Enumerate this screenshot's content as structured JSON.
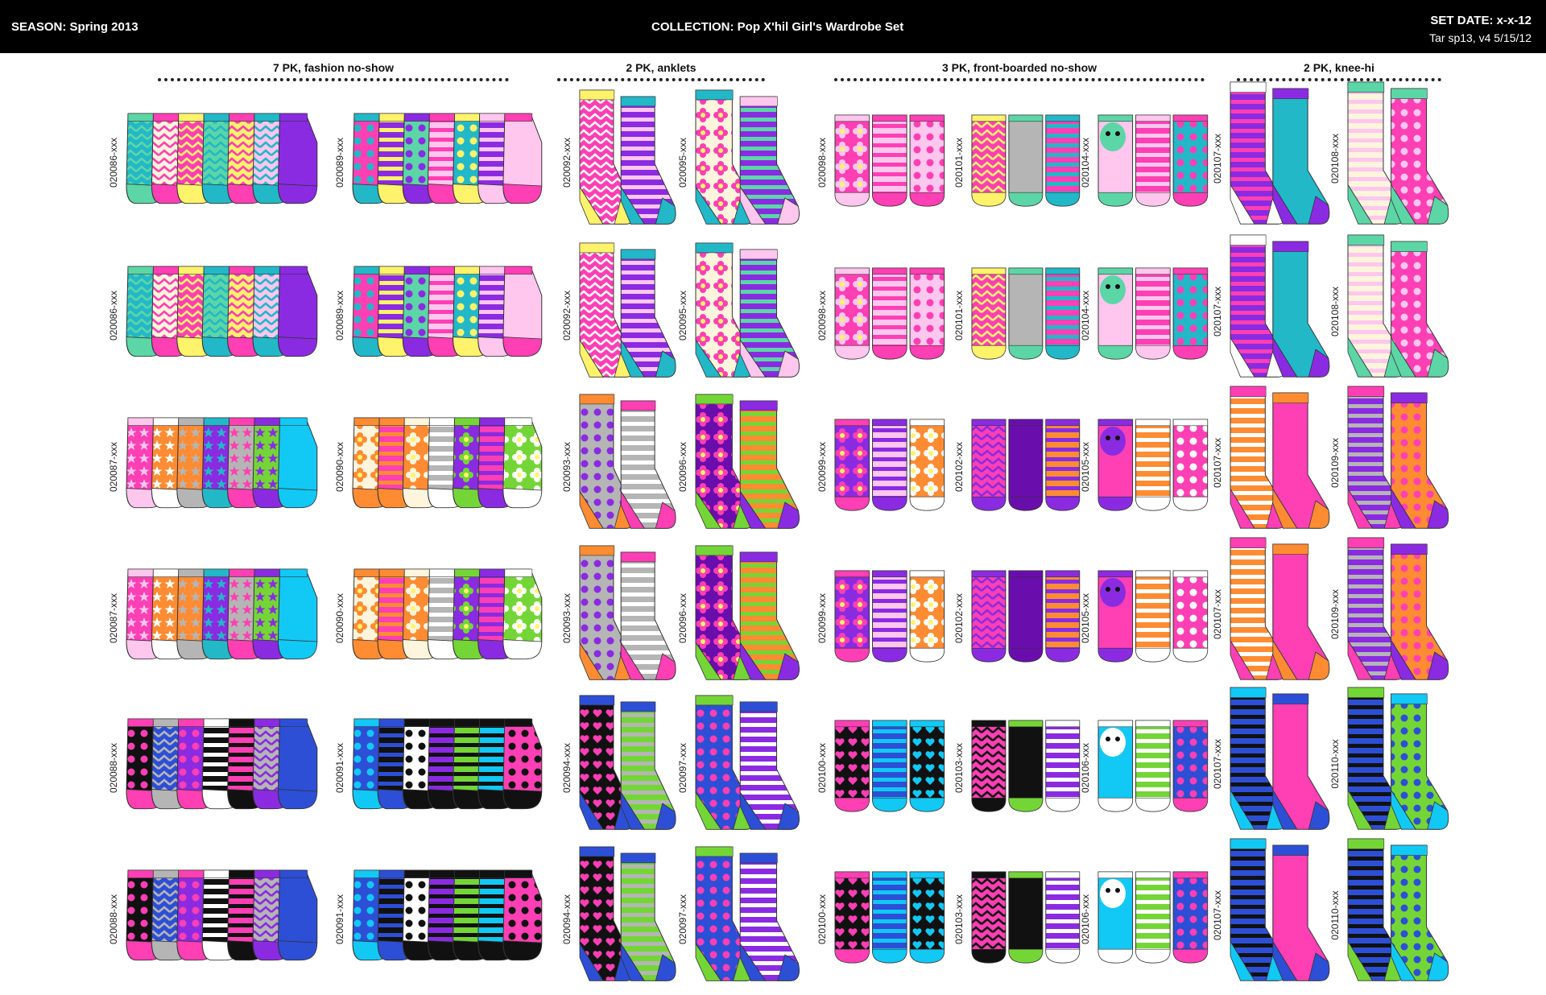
{
  "header": {
    "season": "SEASON: Spring 2013",
    "collection": "COLLECTION:  Pop  X'hil Girl's Wardrobe Set",
    "set_date": "SET DATE:  x-x-12",
    "revision": "Tar sp13, v4   5/15/12"
  },
  "sections": [
    {
      "label": "7 PK, fashion no-show"
    },
    {
      "label": "2 PK, anklets"
    },
    {
      "label": "3 PK, front-boarded no-show"
    },
    {
      "label": "2 PK, knee-hi"
    }
  ],
  "colors": {
    "hot_pink": "#ff3fb4",
    "light_pink": "#ffc6ee",
    "purple": "#8a2be2",
    "deep_purple": "#6a0dad",
    "teal": "#22b8c8",
    "mint": "#5cd6a6",
    "yellow": "#fff36b",
    "orange": "#ff8c32",
    "lime": "#74d636",
    "grey": "#b5b5b5",
    "black": "#111111",
    "royal_blue": "#2d4fd6",
    "cyan": "#12c8f5",
    "cream": "#fff5dc"
  },
  "rows": [
    [
      "020086-xxx",
      "020089-xxx",
      "020092-xxx",
      "020095-xxx",
      "020098-xxx",
      "020101-xxx",
      "020104-xxx",
      "020107-xxx",
      "020108-xxx"
    ],
    [
      "020086-xxx",
      "020089-xxx",
      "020092-xxx",
      "020095-xxx",
      "020098-xxx",
      "020101-xxx",
      "020104-xxx",
      "020107-xxx",
      "020108-xxx"
    ],
    [
      "020087-xxx",
      "020090-xxx",
      "020093-xxx",
      "020096-xxx",
      "020099-xxx",
      "020102-xxx",
      "020105-xxx",
      "020107-xxx",
      "020109-xxx"
    ],
    [
      "020087-xxx",
      "020090-xxx",
      "020093-xxx",
      "020096-xxx",
      "020099-xxx",
      "020102-xxx",
      "020105-xxx",
      "020107-xxx",
      "020109-xxx"
    ],
    [
      "020088-xxx",
      "020091-xxx",
      "020094-xxx",
      "020097-xxx",
      "020100-xxx",
      "020103-xxx",
      "020106-xxx",
      "020107-xxx",
      "020110-xxx"
    ],
    [
      "020088-xxx",
      "020091-xxx",
      "020094-xxx",
      "020097-xxx",
      "020100-xxx",
      "020103-xxx",
      "020106-xxx",
      "020107-xxx",
      "020110-xxx"
    ]
  ],
  "palettes": [
    {
      "type": "noshow",
      "socks": [
        [
          "#22b8c8",
          "#5cd6a6",
          "chev"
        ],
        [
          "#fff5dc",
          "#ff3fb4",
          "chev"
        ],
        [
          "#ff3fb4",
          "#fff36b",
          "chev"
        ],
        [
          "#5cd6a6",
          "#22b8c8",
          "chev"
        ],
        [
          "#fff36b",
          "#ff3fb4",
          "chev"
        ],
        [
          "#ffc6ee",
          "#22b8c8",
          "chev"
        ],
        [
          "#8a2be2",
          "#8a2be2",
          "plain"
        ]
      ]
    },
    {
      "type": "noshow",
      "socks": [
        [
          "#ff3fb4",
          "#22b8c8",
          "dots"
        ],
        [
          "#8a2be2",
          "#fff36b",
          "stripes"
        ],
        [
          "#5cd6a6",
          "#8a2be2",
          "dots"
        ],
        [
          "#ffc6ee",
          "#ff3fb4",
          "stripes"
        ],
        [
          "#22b8c8",
          "#fff36b",
          "dots"
        ],
        [
          "#8a2be2",
          "#ffc6ee",
          "stripes"
        ],
        [
          "#ffc6ee",
          "#ff3fb4",
          "plain"
        ]
      ]
    },
    {
      "type": "anklet",
      "socks": [
        [
          "#ff3fb4",
          "#ffffff",
          "chev",
          "#fff36b"
        ],
        [
          "#8a2be2",
          "#ffc6ee",
          "stripes",
          "#22b8c8"
        ]
      ]
    },
    {
      "type": "anklet",
      "socks": [
        [
          "#fff5dc",
          "#ff3fb4",
          "flowers",
          "#22b8c8"
        ],
        [
          "#8a2be2",
          "#5cd6a6",
          "stripes",
          "#ffc6ee"
        ]
      ]
    },
    {
      "type": "boarded",
      "socks": [
        [
          "#ff3fb4",
          "#ffc6ee",
          "flowers"
        ],
        [
          "#ffc6ee",
          "#ff3fb4",
          "stripes"
        ],
        [
          "#ffc6ee",
          "#ff3fb4",
          "dots"
        ]
      ]
    },
    {
      "type": "boarded",
      "socks": [
        [
          "#ff3fb4",
          "#fff36b",
          "chev"
        ],
        [
          "#b5b5b5",
          "#5cd6a6",
          "plain"
        ],
        [
          "#ff3fb4",
          "#22b8c8",
          "stripes"
        ]
      ]
    },
    {
      "type": "boarded",
      "socks": [
        [
          "#ffc6ee",
          "#5cd6a6",
          "face"
        ],
        [
          "#ff3fb4",
          "#ffc6ee",
          "stripes"
        ],
        [
          "#22b8c8",
          "#ff3fb4",
          "dots"
        ]
      ]
    },
    {
      "type": "knee",
      "socks": [
        [
          "#8a2be2",
          "#ff3fb4",
          "stripes",
          "#ffffff"
        ],
        [
          "#22b8c8",
          "#22b8c8",
          "plain",
          "#8a2be2"
        ]
      ]
    },
    {
      "type": "knee",
      "socks": [
        [
          "#fff5dc",
          "#ffc6ee",
          "stripes",
          "#5cd6a6"
        ],
        [
          "#ff3fb4",
          "#ffc6ee",
          "dots",
          "#5cd6a6"
        ]
      ]
    }
  ],
  "palettes_row3": [
    {
      "type": "noshow",
      "socks": [
        [
          "#ff3fb4",
          "#ffc6ee",
          "stars"
        ],
        [
          "#ff8c32",
          "#ffffff",
          "stars"
        ],
        [
          "#ff8c32",
          "#b5b5b5",
          "stars"
        ],
        [
          "#8a2be2",
          "#22b8c8",
          "stars"
        ],
        [
          "#b5b5b5",
          "#ff3fb4",
          "stars"
        ],
        [
          "#74d636",
          "#8a2be2",
          "stars"
        ],
        [
          "#12c8f5",
          "#12c8f5",
          "plain"
        ]
      ]
    },
    {
      "type": "noshow",
      "socks": [
        [
          "#fff5dc",
          "#ff8c32",
          "flowers"
        ],
        [
          "#ff3fb4",
          "#ff8c32",
          "stripes"
        ],
        [
          "#ff8c32",
          "#fff5dc",
          "flowers"
        ],
        [
          "#b5b5b5",
          "#ffffff",
          "stripes"
        ],
        [
          "#8a2be2",
          "#74d636",
          "flowers"
        ],
        [
          "#ff3fb4",
          "#8a2be2",
          "stripes"
        ],
        [
          "#74d636",
          "#ffffff",
          "flowers"
        ]
      ]
    },
    {
      "type": "anklet",
      "socks": [
        [
          "#b5b5b5",
          "#8a2be2",
          "dots",
          "#ff8c32"
        ],
        [
          "#b5b5b5",
          "#ffffff",
          "stripes",
          "#ff3fb4"
        ]
      ]
    },
    {
      "type": "anklet",
      "socks": [
        [
          "#6a0dad",
          "#ff3fb4",
          "flowers",
          "#74d636"
        ],
        [
          "#ff8c32",
          "#74d636",
          "stripes",
          "#8a2be2"
        ]
      ]
    },
    {
      "type": "boarded",
      "socks": [
        [
          "#8a2be2",
          "#ff3fb4",
          "flowers"
        ],
        [
          "#ffc6ee",
          "#8a2be2",
          "stripes"
        ],
        [
          "#ff8c32",
          "#ffffff",
          "flowers"
        ]
      ]
    },
    {
      "type": "boarded",
      "socks": [
        [
          "#ff3fb4",
          "#8a2be2",
          "chev"
        ],
        [
          "#6a0dad",
          "#6a0dad",
          "plain"
        ],
        [
          "#ff8c32",
          "#8a2be2",
          "stripes"
        ]
      ]
    },
    {
      "type": "boarded",
      "socks": [
        [
          "#ff3fb4",
          "#8a2be2",
          "face"
        ],
        [
          "#ff8c32",
          "#ffffff",
          "stripes"
        ],
        [
          "#ff3fb4",
          "#ffffff",
          "dots"
        ]
      ]
    },
    {
      "type": "knee",
      "socks": [
        [
          "#ff8c32",
          "#ffffff",
          "stripes",
          "#ff3fb4"
        ],
        [
          "#ff3fb4",
          "#e040a0",
          "plain",
          "#ff8c32"
        ]
      ]
    },
    {
      "type": "knee",
      "socks": [
        [
          "#8a2be2",
          "#b5b5b5",
          "stripes",
          "#ff3fb4"
        ],
        [
          "#ff8c32",
          "#ff3fb4",
          "dots",
          "#8a2be2"
        ]
      ]
    }
  ],
  "palettes_row5": [
    {
      "type": "noshow",
      "socks": [
        [
          "#111111",
          "#ff3fb4",
          "dots"
        ],
        [
          "#2d4fd6",
          "#b5b5b5",
          "chev"
        ],
        [
          "#8a2be2",
          "#ff3fb4",
          "dots"
        ],
        [
          "#111111",
          "#ffffff",
          "stripes"
        ],
        [
          "#ff3fb4",
          "#111111",
          "stripes"
        ],
        [
          "#b5b5b5",
          "#8a2be2",
          "chev"
        ],
        [
          "#2d4fd6",
          "#2d4fd6",
          "plain"
        ]
      ]
    },
    {
      "type": "noshow",
      "socks": [
        [
          "#2d4fd6",
          "#12c8f5",
          "dots"
        ],
        [
          "#111111",
          "#2d4fd6",
          "stripes"
        ],
        [
          "#ffffff",
          "#111111",
          "dots"
        ],
        [
          "#8a2be2",
          "#111111",
          "stripes"
        ],
        [
          "#74d636",
          "#111111",
          "stripes"
        ],
        [
          "#12c8f5",
          "#111111",
          "stripes"
        ],
        [
          "#ff3fb4",
          "#111111",
          "dots"
        ]
      ]
    },
    {
      "type": "anklet",
      "socks": [
        [
          "#111111",
          "#ff3fb4",
          "hearts",
          "#2d4fd6"
        ],
        [
          "#74d636",
          "#b5b5b5",
          "stripes",
          "#2d4fd6"
        ]
      ]
    },
    {
      "type": "anklet",
      "socks": [
        [
          "#2d4fd6",
          "#ff3fb4",
          "dots",
          "#74d636"
        ],
        [
          "#8a2be2",
          "#ffffff",
          "stripes",
          "#2d4fd6"
        ]
      ]
    },
    {
      "type": "boarded",
      "socks": [
        [
          "#111111",
          "#ff3fb4",
          "hearts"
        ],
        [
          "#2d4fd6",
          "#12c8f5",
          "stripes"
        ],
        [
          "#111111",
          "#12c8f5",
          "hearts"
        ]
      ]
    },
    {
      "type": "boarded",
      "socks": [
        [
          "#ff3fb4",
          "#111111",
          "chev"
        ],
        [
          "#111111",
          "#74d636",
          "plain"
        ],
        [
          "#8a2be2",
          "#ffffff",
          "stripes"
        ]
      ]
    },
    {
      "type": "boarded",
      "socks": [
        [
          "#12c8f5",
          "#ffffff",
          "face"
        ],
        [
          "#74d636",
          "#ffffff",
          "stripes"
        ],
        [
          "#2d4fd6",
          "#ff3fb4",
          "dots"
        ]
      ]
    },
    {
      "type": "knee",
      "socks": [
        [
          "#2d4fd6",
          "#111111",
          "stripes",
          "#12c8f5"
        ],
        [
          "#ff3fb4",
          "#8a2be2",
          "plain",
          "#2d4fd6"
        ]
      ]
    },
    {
      "type": "knee",
      "socks": [
        [
          "#2d4fd6",
          "#111111",
          "stripes",
          "#74d636"
        ],
        [
          "#74d636",
          "#2d4fd6",
          "dots",
          "#12c8f5"
        ]
      ]
    }
  ]
}
